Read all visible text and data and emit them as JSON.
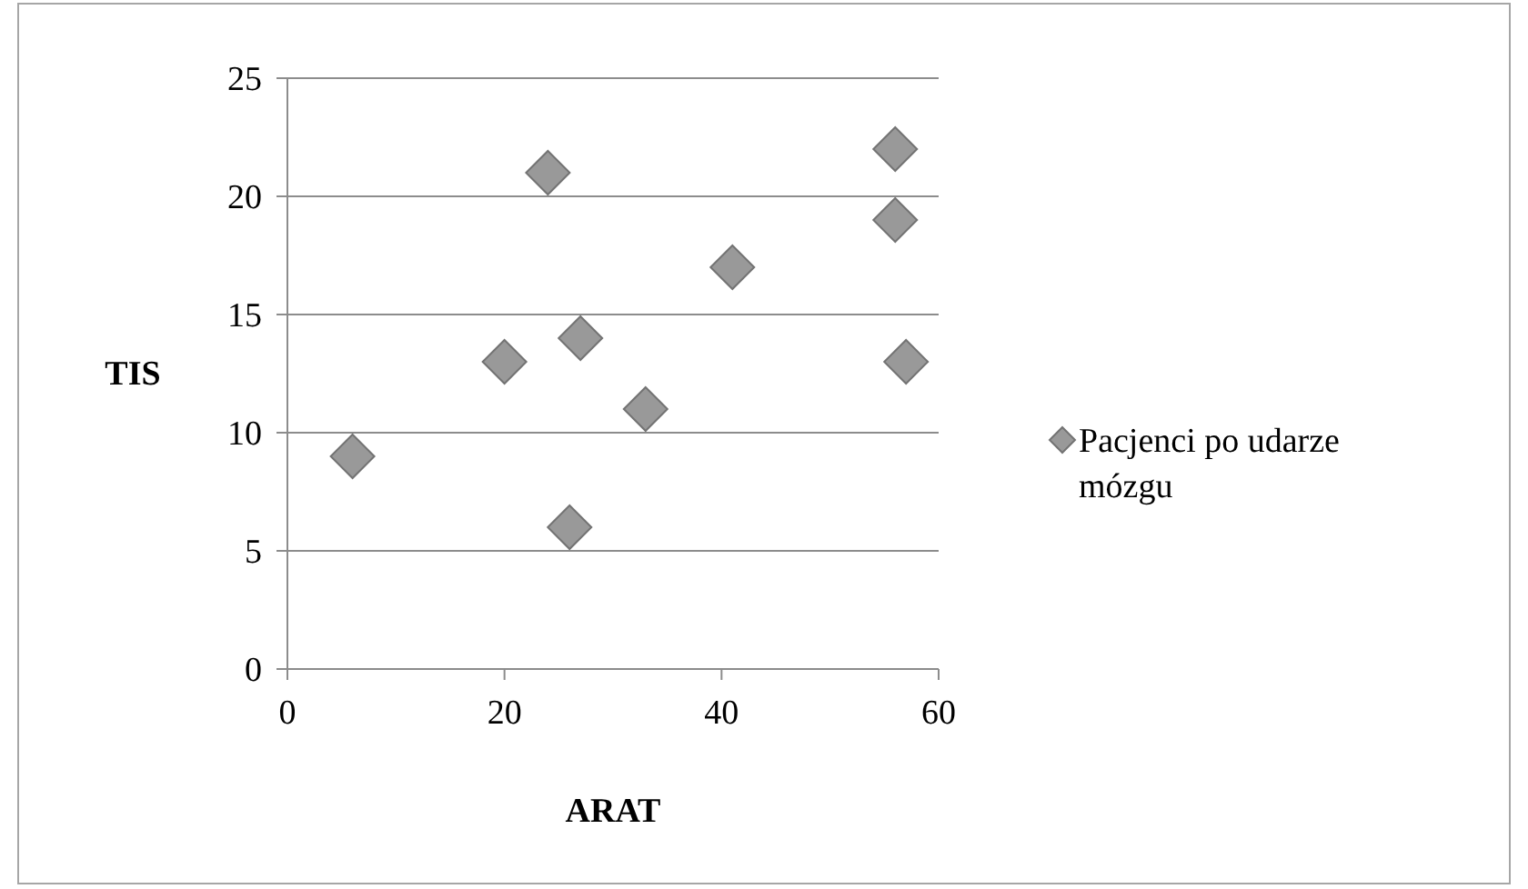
{
  "chart_data": {
    "type": "scatter",
    "xlabel": "ARAT",
    "ylabel": "TIS",
    "xlim": [
      0,
      60
    ],
    "xticks": [
      0,
      20,
      40,
      60
    ],
    "ylim": [
      0,
      25
    ],
    "yticks": [
      0,
      5,
      10,
      15,
      20,
      25
    ],
    "grid": "y",
    "legend": "right",
    "marker": "diamond",
    "series": [
      {
        "name": "Pacjenci po udarze mózgu",
        "color": "#999999",
        "x": [
          6,
          20,
          24,
          26,
          27,
          33,
          41,
          56,
          56,
          57
        ],
        "values": [
          9,
          13,
          21,
          6,
          14,
          11,
          17,
          22,
          19,
          13
        ]
      }
    ]
  }
}
